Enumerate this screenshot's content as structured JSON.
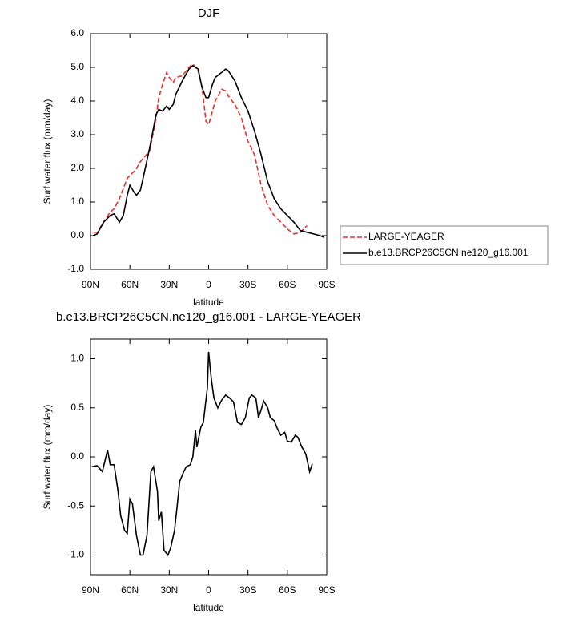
{
  "chart_data": [
    {
      "type": "line",
      "title": "DJF",
      "x_label": "latitude",
      "y_label": "Surf water flux (mm/day)",
      "xlim": [
        90,
        -90
      ],
      "xticks": [
        {
          "value": 90,
          "label": "90N"
        },
        {
          "value": 60,
          "label": "60N"
        },
        {
          "value": 30,
          "label": "30N"
        },
        0,
        {
          "value": -30,
          "label": "30S"
        },
        {
          "value": -60,
          "label": "60S"
        },
        {
          "value": -90,
          "label": "90S"
        }
      ],
      "ylim": [
        -1,
        6
      ],
      "yticks": [
        {
          "value": -1,
          "label": "-1.0"
        },
        {
          "value": 0,
          "label": "0.0"
        },
        {
          "value": 1,
          "label": "1.0"
        },
        {
          "value": 2,
          "label": "2.0"
        },
        {
          "value": 3,
          "label": "3.0"
        },
        {
          "value": 4,
          "label": "4.0"
        },
        {
          "value": 5,
          "label": "5.0"
        },
        {
          "value": 6,
          "label": "6.0"
        }
      ],
      "legend": "right",
      "x": [
        88,
        85,
        80,
        75,
        72,
        68,
        65,
        62,
        60,
        57,
        55,
        52,
        50,
        45,
        40,
        38,
        35,
        32,
        30,
        27,
        25,
        20,
        15,
        12,
        8,
        5,
        2,
        0,
        -3,
        -5,
        -10,
        -13,
        -15,
        -20,
        -25,
        -30,
        -35,
        -40,
        -45,
        -50,
        -55,
        -60,
        -65,
        -70,
        -75,
        -80,
        -85,
        -88
      ],
      "series": [
        {
          "name": "LARGE-YEAGER",
          "color": "#e8302a",
          "style": "dashed",
          "values": [
            0.1,
            0.1,
            0.4,
            0.7,
            0.8,
            1.1,
            1.4,
            1.7,
            1.8,
            1.9,
            2.0,
            2.2,
            2.3,
            2.5,
            3.5,
            4.1,
            4.5,
            4.85,
            4.7,
            4.55,
            4.7,
            4.75,
            5.0,
            5.1,
            4.9,
            4.4,
            3.4,
            3.3,
            3.7,
            4.0,
            4.35,
            4.3,
            4.15,
            3.9,
            3.5,
            2.8,
            2.4,
            1.5,
            0.9,
            0.6,
            0.4,
            0.2,
            0.05,
            0.1,
            0.3,
            null,
            null,
            null
          ]
        },
        {
          "name": "b.e13.BRCP26C5CN.ne120_g16.001",
          "color": "#000000",
          "style": "solid",
          "values": [
            0.0,
            0.05,
            0.4,
            0.6,
            0.65,
            0.4,
            0.6,
            1.2,
            1.5,
            1.3,
            1.2,
            1.35,
            1.7,
            2.6,
            3.6,
            3.75,
            3.7,
            3.85,
            3.75,
            3.9,
            4.2,
            4.6,
            4.95,
            5.05,
            4.95,
            4.4,
            4.1,
            4.1,
            4.5,
            4.7,
            4.85,
            4.95,
            4.9,
            4.6,
            4.1,
            3.7,
            3.1,
            2.4,
            1.6,
            1.1,
            0.8,
            0.6,
            0.4,
            0.15,
            0.1,
            0.05,
            0.0,
            -0.05
          ]
        }
      ]
    },
    {
      "type": "line",
      "title": "b.e13.BRCP26C5CN.ne120_g16.001 - LARGE-YEAGER",
      "x_label": "latitude",
      "y_label": "Surf water flux (mm/day)",
      "xlim": [
        90,
        -90
      ],
      "xticks": [
        {
          "value": 90,
          "label": "90N"
        },
        {
          "value": 60,
          "label": "60N"
        },
        {
          "value": 30,
          "label": "30N"
        },
        0,
        {
          "value": -30,
          "label": "30S"
        },
        {
          "value": -60,
          "label": "60S"
        },
        {
          "value": -90,
          "label": "90S"
        }
      ],
      "ylim": [
        -1.2,
        1.2
      ],
      "yticks": [
        {
          "value": -1,
          "label": "-1.0"
        },
        -0.5,
        {
          "value": 0,
          "label": "0.0"
        },
        0.5,
        {
          "value": 1,
          "label": "1.0"
        }
      ],
      "x": [
        89,
        85,
        81,
        77,
        75,
        72,
        69,
        67,
        64,
        62,
        60,
        58,
        55,
        52,
        50,
        47,
        44,
        42,
        39,
        38,
        36,
        34,
        31,
        29,
        26,
        24,
        22,
        19,
        17,
        14,
        12,
        10,
        9,
        6,
        4,
        1,
        0,
        -2,
        -4,
        -7,
        -10,
        -13,
        -16,
        -19,
        -22,
        -25,
        -28,
        -31,
        -33,
        -36,
        -38,
        -40,
        -42,
        -45,
        -47,
        -50,
        -52,
        -55,
        -58,
        -60,
        -63,
        -66,
        -68,
        -71,
        -74,
        -77,
        -79
      ],
      "series": [
        {
          "color": "#000000",
          "style": "solid",
          "values": [
            -0.1,
            -0.09,
            -0.15,
            0.07,
            -0.08,
            -0.08,
            -0.35,
            -0.6,
            -0.75,
            -0.78,
            -0.43,
            -0.48,
            -0.8,
            -1.0,
            -1.0,
            -0.8,
            -0.15,
            -0.1,
            -0.35,
            -0.65,
            -0.56,
            -0.95,
            -1.0,
            -0.93,
            -0.75,
            -0.5,
            -0.25,
            -0.15,
            -0.1,
            -0.08,
            0.0,
            0.27,
            0.1,
            0.3,
            0.35,
            0.7,
            1.07,
            0.8,
            0.6,
            0.5,
            0.58,
            0.63,
            0.6,
            0.56,
            0.35,
            0.33,
            0.4,
            0.6,
            0.63,
            0.6,
            0.4,
            0.48,
            0.57,
            0.5,
            0.4,
            0.37,
            0.3,
            0.22,
            0.25,
            0.16,
            0.15,
            0.22,
            0.2,
            0.1,
            0.03,
            -0.15,
            -0.07
          ]
        }
      ]
    }
  ]
}
